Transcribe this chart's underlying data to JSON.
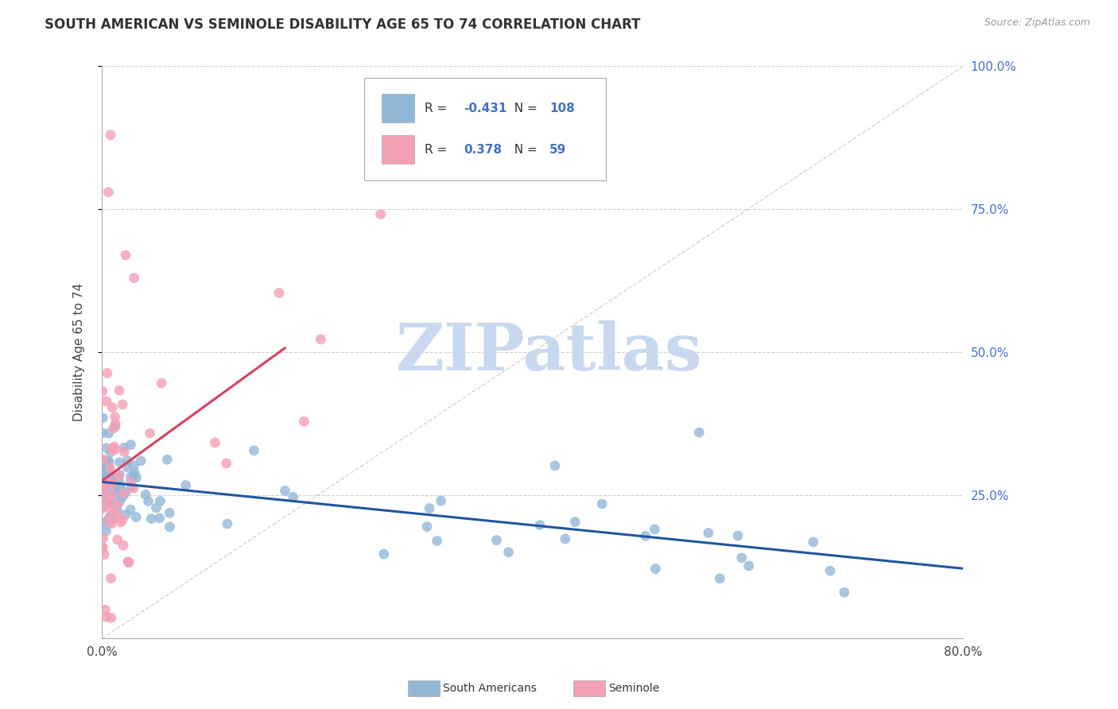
{
  "title": "SOUTH AMERICAN VS SEMINOLE DISABILITY AGE 65 TO 74 CORRELATION CHART",
  "source": "Source: ZipAtlas.com",
  "ylabel": "Disability Age 65 to 74",
  "xlim": [
    0.0,
    0.8
  ],
  "ylim": [
    0.0,
    1.0
  ],
  "blue_color": "#92b8d8",
  "pink_color": "#f4a0b5",
  "blue_line_color": "#2255a0",
  "pink_line_color": "#d84060",
  "diag_color": "#cccccc",
  "grid_color": "#cccccc",
  "watermark_color": "#c8d8ee",
  "background_color": "#ffffff",
  "title_color": "#333333",
  "source_color": "#999999",
  "right_tick_color": "#4472c4",
  "legend_R1": "-0.431",
  "legend_N1": "108",
  "legend_R2": "0.378",
  "legend_N2": "59",
  "title_fontsize": 12,
  "axis_label_fontsize": 11,
  "tick_fontsize": 11,
  "legend_fontsize": 11,
  "watermark_fontsize": 60,
  "source_fontsize": 9
}
